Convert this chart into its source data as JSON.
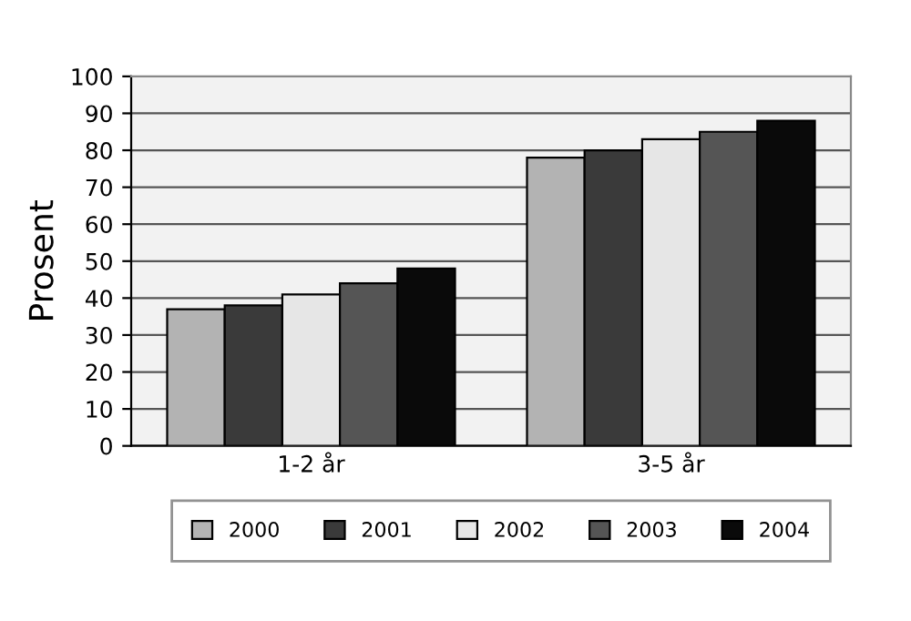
{
  "chart_data": {
    "type": "bar",
    "ylabel": "Prosent",
    "categories": [
      "1-2 år",
      "3-5 år"
    ],
    "series": [
      {
        "name": "2000",
        "color": "#b3b3b3",
        "values": [
          37,
          78
        ]
      },
      {
        "name": "2001",
        "color": "#3a3a3a",
        "values": [
          38,
          80
        ]
      },
      {
        "name": "2002",
        "color": "#e6e6e6",
        "values": [
          41,
          83
        ]
      },
      {
        "name": "2003",
        "color": "#555555",
        "values": [
          44,
          85
        ]
      },
      {
        "name": "2004",
        "color": "#0a0a0a",
        "values": [
          48,
          88
        ]
      }
    ],
    "ylim": [
      0,
      100
    ],
    "yticks": [
      0,
      10,
      20,
      30,
      40,
      50,
      60,
      70,
      80,
      90,
      100
    ],
    "grid": "y",
    "legend": "bottom"
  }
}
